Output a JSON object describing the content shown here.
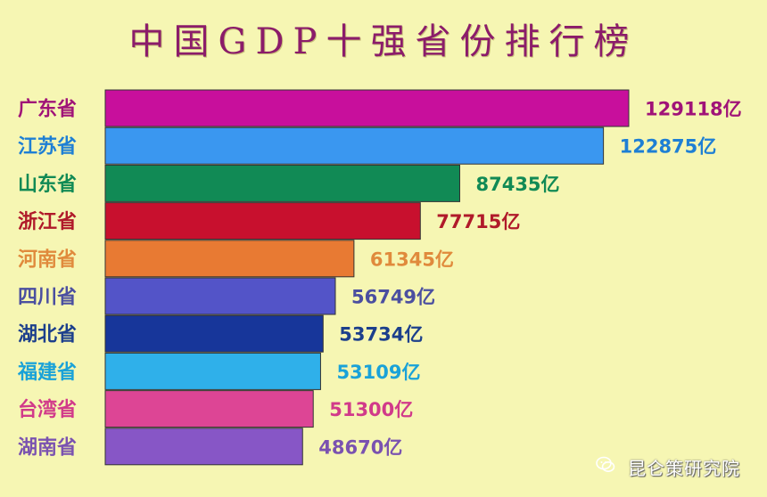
{
  "chart_data": {
    "type": "bar",
    "orientation": "horizontal",
    "title": "中国GDP十强省份排行榜",
    "categories": [
      "广东省",
      "江苏省",
      "山东省",
      "浙江省",
      "河南省",
      "四川省",
      "湖北省",
      "福建省",
      "台湾省",
      "湖南省"
    ],
    "values": [
      129118,
      122875,
      87435,
      77715,
      61345,
      56749,
      53734,
      53109,
      51300,
      48670
    ],
    "value_labels": [
      "129118亿",
      "122875亿",
      "87435亿",
      "77715亿",
      "61345亿",
      "56749亿",
      "53734亿",
      "53109亿",
      "51300亿",
      "48670亿"
    ],
    "bar_colors": [
      "#c80f9c",
      "#3a97f0",
      "#118a55",
      "#c8102e",
      "#e87a33",
      "#5354c8",
      "#17369a",
      "#2fb0ea",
      "#dd4595",
      "#8756c6"
    ],
    "label_colors": [
      "#a01378",
      "#1e7fd4",
      "#118a55",
      "#b01a2a",
      "#e08a3c",
      "#4b4fa0",
      "#1c3f8c",
      "#1aa2d8",
      "#d13a8a",
      "#7a52b0"
    ],
    "xlabel": "",
    "ylabel": "",
    "grid": false,
    "legend": "none"
  },
  "watermark": {
    "text": "昆仑策研究院",
    "icon": "wechat-icon"
  }
}
